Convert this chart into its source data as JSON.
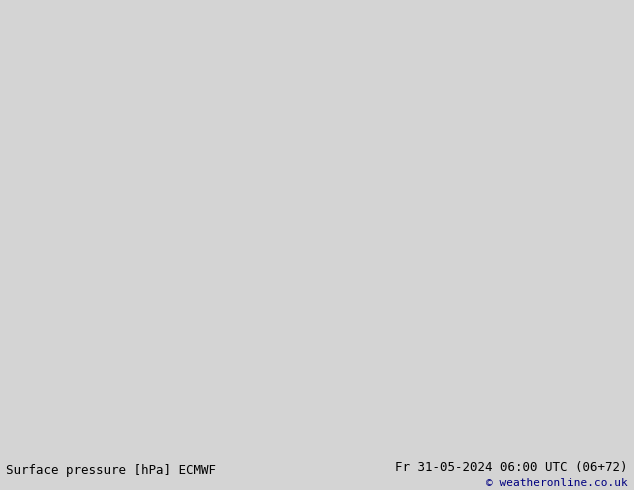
{
  "title_left": "Surface pressure [hPa] ECMWF",
  "title_right": "Fr 31-05-2024 06:00 UTC (06+72)",
  "copyright": "© weatheronline.co.uk",
  "bg_color": "#d4d4d4",
  "land_color": "#c8e8b8",
  "coast_color": "#909090",
  "sea_color": "#d4d4d4",
  "contour_color_red": "#ff0000",
  "contour_color_black": "#000000",
  "contour_color_blue": "#0044bb",
  "footer_bg": "#e0e0e0",
  "footer_text_color": "#000080",
  "font_size_footer": 9,
  "font_size_labels": 7,
  "lon_min": -13.0,
  "lon_max": 10.0,
  "lat_min": 48.5,
  "lat_max": 62.5
}
